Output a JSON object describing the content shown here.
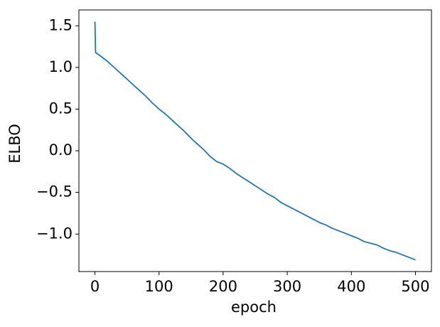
{
  "chart_data": {
    "type": "line",
    "xlabel": "epoch",
    "ylabel": "ELBO",
    "color": "#1f77b4",
    "x": [
      0,
      1,
      10,
      20,
      30,
      40,
      50,
      60,
      70,
      80,
      90,
      100,
      110,
      120,
      130,
      140,
      150,
      160,
      170,
      180,
      190,
      200,
      210,
      220,
      230,
      240,
      250,
      260,
      270,
      280,
      290,
      300,
      310,
      320,
      330,
      340,
      350,
      360,
      370,
      380,
      390,
      400,
      410,
      420,
      430,
      440,
      450,
      460,
      470,
      480,
      490,
      500
    ],
    "values": [
      1.55,
      1.18,
      1.13,
      1.07,
      1.0,
      0.93,
      0.86,
      0.79,
      0.72,
      0.65,
      0.57,
      0.5,
      0.44,
      0.37,
      0.3,
      0.23,
      0.15,
      0.08,
      0.01,
      -0.07,
      -0.13,
      -0.16,
      -0.21,
      -0.27,
      -0.32,
      -0.37,
      -0.42,
      -0.47,
      -0.52,
      -0.56,
      -0.62,
      -0.66,
      -0.7,
      -0.74,
      -0.78,
      -0.82,
      -0.86,
      -0.89,
      -0.93,
      -0.96,
      -0.99,
      -1.02,
      -1.05,
      -1.09,
      -1.11,
      -1.13,
      -1.17,
      -1.2,
      -1.22,
      -1.25,
      -1.28,
      -1.31
    ],
    "xlim": [
      -25,
      525
    ],
    "xticks": [
      0,
      100,
      200,
      300,
      400,
      500
    ],
    "ylim": [
      -1.45,
      1.69
    ],
    "yticks": [
      {
        "value": -1.0,
        "label": "−1.0"
      },
      {
        "value": -0.5,
        "label": "−0.5"
      },
      {
        "value": 0,
        "label": "0.0"
      },
      {
        "value": 0.5,
        "label": "0.5"
      },
      {
        "value": 1.0,
        "label": "1.0"
      },
      {
        "value": 1.5,
        "label": "1.5"
      }
    ],
    "grid": false
  }
}
